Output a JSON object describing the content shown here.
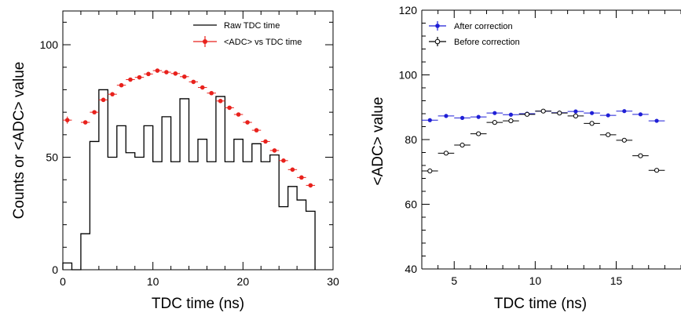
{
  "chart_data": [
    {
      "type": "histogram+scatter",
      "xlabel": "TDC time (ns)",
      "ylabel": "Counts or <ADC> value",
      "xlim": [
        0,
        30
      ],
      "ylim": [
        0,
        115
      ],
      "xticks": [
        "0",
        "10",
        "20",
        "30"
      ],
      "yticks": [
        "0",
        "50",
        "100"
      ],
      "legend_position": "top-right",
      "series": [
        {
          "name": "Raw TDC time",
          "kind": "histogram",
          "color": "#000000",
          "bin_edges": [
            0,
            1,
            2,
            3,
            4,
            5,
            6,
            7,
            8,
            9,
            10,
            11,
            12,
            13,
            14,
            15,
            16,
            17,
            18,
            19,
            20,
            21,
            22,
            23,
            24,
            25,
            26,
            27,
            28
          ],
          "counts": [
            3,
            0,
            16,
            57,
            80,
            50,
            64,
            52,
            50,
            64,
            48,
            68,
            48,
            76,
            48,
            58,
            48,
            77,
            48,
            58,
            48,
            56,
            48,
            51,
            28,
            37,
            31,
            26
          ]
        },
        {
          "name": "<ADC> vs TDC time",
          "kind": "points",
          "color": "#e8211c",
          "x": [
            0.5,
            2.5,
            3.5,
            4.5,
            5.5,
            6.5,
            7.5,
            8.5,
            9.5,
            10.5,
            11.5,
            12.5,
            13.5,
            14.5,
            15.5,
            16.5,
            17.5,
            18.5,
            19.5,
            20.5,
            21.5,
            22.5,
            23.5,
            24.5,
            25.5,
            26.5,
            27.5
          ],
          "y": [
            66.5,
            65.5,
            70,
            75.5,
            78,
            82,
            84.5,
            85.5,
            87,
            88.5,
            87.8,
            87.2,
            85.8,
            83.5,
            81,
            78.5,
            75,
            72,
            69,
            65.5,
            62,
            57,
            53,
            48.5,
            44.5,
            41,
            37.5
          ],
          "errors": [
            1.6,
            0.8,
            0.5,
            0.5,
            0.5,
            0.5,
            0.5,
            0.5,
            0.5,
            0.5,
            0.5,
            0.5,
            0.5,
            0.5,
            0.5,
            0.5,
            0.5,
            0.5,
            0.5,
            0.5,
            0.5,
            0.5,
            0.5,
            0.5,
            0.5,
            0.5,
            0.5
          ]
        }
      ]
    },
    {
      "type": "scatter",
      "xlabel": "TDC time (ns)",
      "ylabel": "<ADC> value",
      "xlim": [
        3,
        19
      ],
      "ylim": [
        40,
        120
      ],
      "xticks": [
        "5",
        "10",
        "15"
      ],
      "yticks": [
        "40",
        "60",
        "80",
        "100",
        "120"
      ],
      "legend_position": "top-left",
      "series": [
        {
          "name": "After correction",
          "color": "#1f1fd6",
          "marker": "filled-circle",
          "x": [
            3.5,
            4.5,
            5.5,
            6.5,
            7.5,
            8.5,
            9.5,
            10.5,
            11.5,
            12.5,
            13.5,
            14.5,
            15.5,
            16.5,
            17.5
          ],
          "y": [
            86,
            87.3,
            86.7,
            87,
            88.2,
            87.7,
            88,
            88.8,
            88.3,
            88.7,
            88.2,
            87.5,
            88.8,
            87.8,
            85.8
          ],
          "xerr": 0.5
        },
        {
          "name": "Before correction",
          "color": "#000000",
          "marker": "open-circle",
          "x": [
            3.5,
            4.5,
            5.5,
            6.5,
            7.5,
            8.5,
            9.5,
            10.5,
            11.5,
            12.5,
            13.5,
            14.5,
            15.5,
            16.5,
            17.5
          ],
          "y": [
            70.3,
            75.8,
            78.3,
            81.8,
            85.3,
            85.8,
            87.8,
            88.8,
            88.2,
            87.3,
            85,
            81.5,
            79.8,
            75,
            70.5
          ],
          "xerr": 0.5
        }
      ]
    }
  ]
}
